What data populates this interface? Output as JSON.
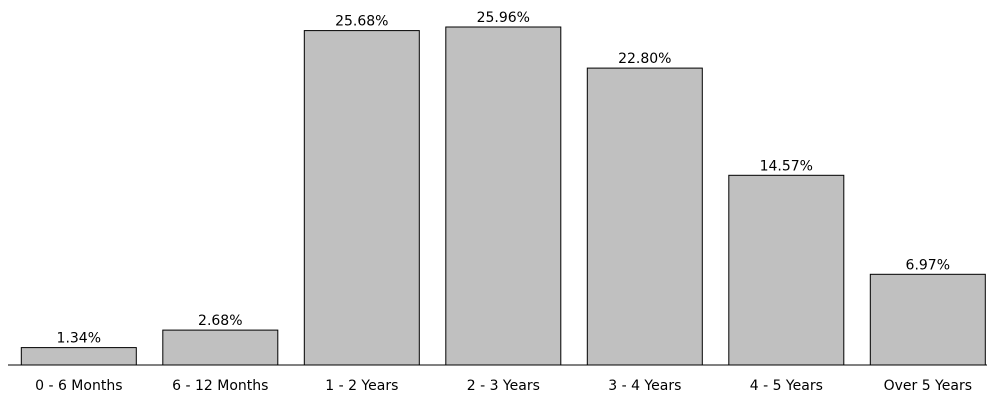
{
  "chart_data": {
    "type": "bar",
    "categories": [
      "0 - 6 Months",
      "6 - 12 Months",
      "1 - 2 Years",
      "2 - 3 Years",
      "3 - 4 Years",
      "4 - 5 Years",
      "Over 5 Years"
    ],
    "values": [
      1.34,
      2.68,
      25.68,
      25.96,
      22.8,
      14.57,
      6.97
    ],
    "value_labels": [
      "1.34%",
      "2.68%",
      "25.68%",
      "25.96%",
      "22.80%",
      "14.57%",
      "6.97%"
    ],
    "title": "",
    "xlabel": "",
    "ylabel": "",
    "ylim": [
      0,
      25.96
    ],
    "grid": false,
    "legend": "none",
    "colors": {
      "bar_fill": "#c0c0c0",
      "bar_stroke": "#000000"
    }
  }
}
